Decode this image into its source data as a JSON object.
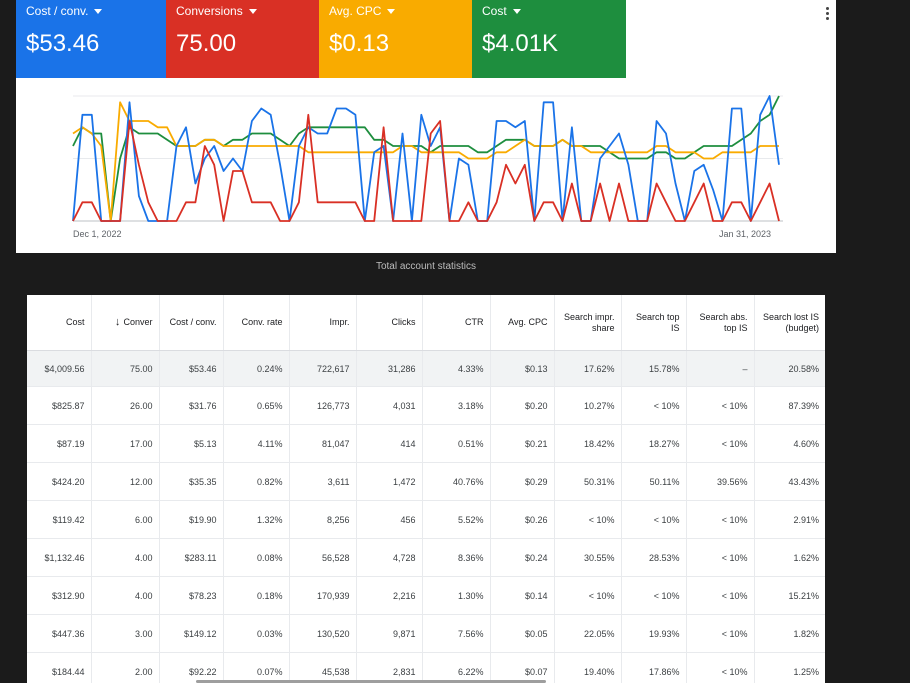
{
  "kpis": [
    {
      "label": "Cost / conv.",
      "value": "$53.46",
      "color": "#1a73e8"
    },
    {
      "label": "Conversions",
      "value": "75.00",
      "color": "#d93025"
    },
    {
      "label": "Avg. CPC",
      "value": "$0.13",
      "color": "#f9ab00"
    },
    {
      "label": "Cost",
      "value": "$4.01K",
      "color": "#1e8e3e"
    }
  ],
  "more_icon": "more-vert-icon",
  "chart_data": {
    "type": "line",
    "x_start_label": "Dec 1, 2022",
    "x_end_label": "Jan 31, 2023",
    "ylim": [
      0,
      100
    ],
    "series": [
      {
        "name": "Cost / conv.",
        "color": "#1a73e8",
        "values": [
          0,
          85,
          85,
          0,
          0,
          0,
          95,
          20,
          0,
          0,
          0,
          60,
          75,
          30,
          50,
          60,
          40,
          50,
          40,
          80,
          90,
          85,
          45,
          0,
          60,
          75,
          70,
          70,
          90,
          90,
          85,
          0,
          55,
          60,
          0,
          70,
          0,
          85,
          60,
          75,
          0,
          50,
          45,
          0,
          0,
          80,
          80,
          75,
          80,
          0,
          95,
          95,
          0,
          75,
          0,
          0,
          50,
          60,
          70,
          45,
          0,
          0,
          80,
          70,
          30,
          0,
          40,
          45,
          25,
          0,
          90,
          90,
          0,
          85,
          100,
          45
        ]
      },
      {
        "name": "Conversions",
        "color": "#d93025",
        "values": [
          0,
          15,
          15,
          0,
          0,
          0,
          80,
          45,
          15,
          0,
          0,
          0,
          15,
          15,
          60,
          45,
          0,
          40,
          40,
          15,
          15,
          15,
          0,
          0,
          15,
          85,
          15,
          15,
          15,
          15,
          15,
          0,
          0,
          75,
          0,
          0,
          0,
          0,
          70,
          80,
          0,
          0,
          15,
          0,
          0,
          15,
          45,
          30,
          45,
          0,
          15,
          15,
          0,
          30,
          0,
          0,
          30,
          0,
          30,
          0,
          0,
          0,
          30,
          15,
          0,
          0,
          15,
          30,
          0,
          0,
          15,
          15,
          0,
          15,
          30,
          0
        ]
      },
      {
        "name": "Avg. CPC",
        "color": "#f9ab00",
        "values": [
          70,
          75,
          70,
          60,
          0,
          95,
          80,
          80,
          80,
          75,
          75,
          60,
          60,
          60,
          65,
          65,
          60,
          60,
          60,
          60,
          60,
          60,
          60,
          60,
          60,
          55,
          55,
          55,
          55,
          55,
          55,
          55,
          55,
          55,
          55,
          60,
          60,
          55,
          55,
          55,
          55,
          55,
          50,
          50,
          50,
          55,
          55,
          60,
          65,
          60,
          60,
          60,
          65,
          60,
          60,
          55,
          55,
          55,
          55,
          55,
          55,
          55,
          60,
          60,
          55,
          55,
          55,
          50,
          50,
          55,
          55,
          55,
          55,
          60,
          60,
          60
        ]
      },
      {
        "name": "Cost",
        "color": "#1e8e3e",
        "values": [
          60,
          75,
          70,
          70,
          0,
          50,
          75,
          70,
          70,
          70,
          65,
          60,
          60,
          60,
          65,
          65,
          60,
          65,
          65,
          70,
          70,
          70,
          65,
          60,
          70,
          75,
          75,
          75,
          75,
          75,
          75,
          75,
          65,
          65,
          60,
          60,
          60,
          60,
          55,
          60,
          60,
          60,
          60,
          55,
          55,
          60,
          65,
          65,
          65,
          60,
          60,
          60,
          65,
          60,
          60,
          60,
          60,
          55,
          50,
          50,
          50,
          50,
          55,
          55,
          50,
          50,
          55,
          60,
          60,
          60,
          60,
          65,
          70,
          80,
          85,
          100
        ]
      }
    ]
  },
  "stats_title": "Total account statistics",
  "table": {
    "columns": [
      "Cost",
      "Conver",
      "Cost / conv.",
      "Conv. rate",
      "Impr.",
      "Clicks",
      "CTR",
      "Avg. CPC",
      "Search impr. share",
      "Search top IS",
      "Search abs. top IS",
      "Search lost IS (budget)"
    ],
    "sort_icon": "arrow-down-icon",
    "total": [
      "$4,009.56",
      "75.00",
      "$53.46",
      "0.24%",
      "722,617",
      "31,286",
      "4.33%",
      "$0.13",
      "17.62%",
      "15.78%",
      "–",
      "20.58%"
    ],
    "rows": [
      [
        "$825.87",
        "26.00",
        "$31.76",
        "0.65%",
        "126,773",
        "4,031",
        "3.18%",
        "$0.20",
        "10.27%",
        "< 10%",
        "< 10%",
        "87.39%"
      ],
      [
        "$87.19",
        "17.00",
        "$5.13",
        "4.11%",
        "81,047",
        "414",
        "0.51%",
        "$0.21",
        "18.42%",
        "18.27%",
        "< 10%",
        "4.60%"
      ],
      [
        "$424.20",
        "12.00",
        "$35.35",
        "0.82%",
        "3,611",
        "1,472",
        "40.76%",
        "$0.29",
        "50.31%",
        "50.11%",
        "39.56%",
        "43.43%"
      ],
      [
        "$119.42",
        "6.00",
        "$19.90",
        "1.32%",
        "8,256",
        "456",
        "5.52%",
        "$0.26",
        "< 10%",
        "< 10%",
        "< 10%",
        "2.91%"
      ],
      [
        "$1,132.46",
        "4.00",
        "$283.11",
        "0.08%",
        "56,528",
        "4,728",
        "8.36%",
        "$0.24",
        "30.55%",
        "28.53%",
        "< 10%",
        "1.62%"
      ],
      [
        "$312.90",
        "4.00",
        "$78.23",
        "0.18%",
        "170,939",
        "2,216",
        "1.30%",
        "$0.14",
        "< 10%",
        "< 10%",
        "< 10%",
        "15.21%"
      ],
      [
        "$447.36",
        "3.00",
        "$149.12",
        "0.03%",
        "130,520",
        "9,871",
        "7.56%",
        "$0.05",
        "22.05%",
        "19.93%",
        "< 10%",
        "1.82%"
      ],
      [
        "$184.44",
        "2.00",
        "$92.22",
        "0.07%",
        "45,538",
        "2,831",
        "6.22%",
        "$0.07",
        "19.40%",
        "17.86%",
        "< 10%",
        "1.25%"
      ]
    ]
  }
}
